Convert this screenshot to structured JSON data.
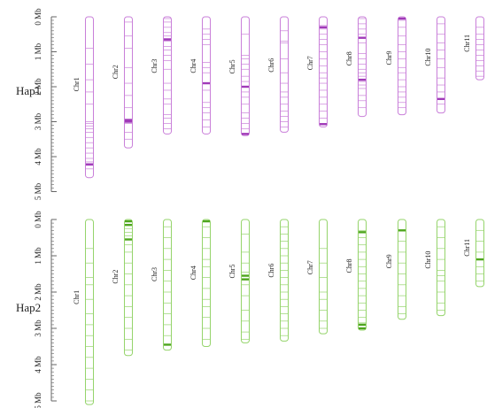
{
  "figure": {
    "axis_labels": [
      "0 Mb",
      "1 Mb",
      "2 Mb",
      "3 Mb",
      "4 Mb",
      "5 Mb"
    ],
    "panels": [
      {
        "label": "Hap1",
        "color": "#c97fd9",
        "dense_color": "#a03ab8",
        "chromosomes": [
          {
            "name": "Chr1",
            "length": 4.6,
            "marks": [
              0.9,
              1.35,
              1.8,
              2.15,
              2.5,
              3.0,
              3.05,
              3.12,
              3.2,
              3.3,
              3.45,
              3.6,
              3.75,
              3.9,
              4.05,
              4.15,
              4.25,
              4.35
            ],
            "dense": [
              4.22
            ]
          },
          {
            "name": "Chr2",
            "length": 3.75,
            "marks": [
              0.15,
              0.55,
              0.9,
              1.45,
              1.9,
              2.25,
              2.6,
              3.05,
              3.3,
              3.5
            ],
            "dense": [
              2.95,
              3.0
            ]
          },
          {
            "name": "Chr3",
            "length": 3.35,
            "marks": [
              0.05,
              0.15,
              0.3,
              0.45,
              0.55,
              0.62,
              0.7,
              0.85,
              0.95,
              1.1,
              1.25,
              1.5,
              1.9,
              2.1,
              2.35,
              2.5,
              2.8,
              2.9,
              3.05,
              3.2
            ],
            "dense": [
              0.65
            ]
          },
          {
            "name": "Chr4",
            "length": 3.35,
            "marks": [
              0.35,
              0.5,
              0.65,
              0.8,
              1.3,
              1.45,
              1.6,
              1.9,
              2.1,
              2.45,
              2.6,
              2.75,
              2.95,
              3.15
            ],
            "dense": [
              1.9
            ]
          },
          {
            "name": "Chr5",
            "length": 3.4,
            "marks": [
              0.5,
              1.1,
              1.2,
              1.35,
              1.5,
              1.7,
              1.85,
              2.0,
              2.15,
              2.3,
              2.5,
              2.75,
              2.9,
              3.05,
              3.2
            ],
            "dense": [
              2.0,
              3.35
            ]
          },
          {
            "name": "Chr6",
            "length": 3.3,
            "marks": [
              0.4,
              0.7,
              0.75,
              1.2,
              1.6,
              1.9,
              2.15,
              2.3,
              2.5,
              2.7,
              2.85,
              3.0,
              3.15
            ],
            "dense": []
          },
          {
            "name": "Chr7",
            "length": 3.15,
            "marks": [
              0.25,
              0.35,
              0.5,
              0.65,
              0.8,
              1.0,
              1.2,
              1.4,
              1.6,
              1.75,
              1.9,
              2.1,
              2.3,
              2.5,
              2.7,
              2.9,
              3.05
            ],
            "dense": [
              0.3,
              3.07
            ]
          },
          {
            "name": "Chr8",
            "length": 2.85,
            "marks": [
              0.05,
              0.2,
              0.35,
              0.5,
              0.75,
              1.05,
              1.2,
              1.35,
              1.5,
              1.6,
              1.7,
              1.85,
              1.95,
              2.05,
              2.25,
              2.4,
              2.6
            ],
            "dense": [
              0.6,
              1.8
            ]
          },
          {
            "name": "Chr9",
            "length": 2.8,
            "marks": [
              0.05,
              0.1,
              0.3,
              0.55,
              0.8,
              1.0,
              1.2,
              1.45,
              1.6,
              1.8,
              2.0,
              2.15,
              2.3,
              2.45,
              2.6
            ],
            "dense": [
              0.05
            ]
          },
          {
            "name": "Chr10",
            "length": 2.75,
            "marks": [
              0.2,
              0.5,
              0.75,
              0.95,
              1.2,
              1.45,
              1.75,
              1.95,
              2.15,
              2.35,
              2.5
            ],
            "dense": [
              2.35
            ]
          },
          {
            "name": "Chr11",
            "length": 1.8,
            "marks": [
              0.3,
              0.5,
              0.65,
              0.8,
              0.95,
              1.1,
              1.25,
              1.4,
              1.55,
              1.7
            ],
            "dense": []
          }
        ]
      },
      {
        "label": "Hap2",
        "color": "#95d46b",
        "dense_color": "#4ea51e",
        "chromosomes": [
          {
            "name": "Chr1",
            "length": 5.1,
            "marks": [
              0.8,
              1.2,
              1.6,
              1.8,
              2.2,
              2.6,
              2.9,
              3.2,
              3.5,
              3.8,
              4.1,
              4.4,
              4.7,
              5.0
            ],
            "dense": []
          },
          {
            "name": "Chr2",
            "length": 3.75,
            "marks": [
              0.05,
              0.15,
              0.25,
              0.35,
              0.45,
              0.7,
              0.9,
              1.2,
              1.5,
              1.8,
              2.1,
              2.4,
              2.7,
              3.0,
              3.3,
              3.6
            ],
            "dense": [
              0.05,
              0.15,
              0.55
            ]
          },
          {
            "name": "Chr3",
            "length": 3.6,
            "marks": [
              0.2,
              0.5,
              0.8,
              1.1,
              1.4,
              1.7,
              2.0,
              2.3,
              2.6,
              2.9,
              3.2,
              3.45
            ],
            "dense": [
              3.45
            ]
          },
          {
            "name": "Chr4",
            "length": 3.5,
            "marks": [
              0.2,
              0.5,
              0.8,
              1.1,
              1.3,
              1.6,
              1.9,
              2.2,
              2.4,
              2.7,
              3.0,
              3.3
            ],
            "dense": [
              0.05
            ]
          },
          {
            "name": "Chr5",
            "length": 3.4,
            "marks": [
              0.4,
              0.9,
              1.2,
              1.45,
              1.55,
              1.8,
              2.1,
              2.5,
              2.8,
              3.1,
              3.3
            ],
            "dense": [
              1.55,
              1.65
            ]
          },
          {
            "name": "Chr6",
            "length": 3.35,
            "marks": [
              0.2,
              0.4,
              0.6,
              0.8,
              1.0,
              1.2,
              1.4,
              1.6,
              1.8,
              2.0,
              2.2,
              2.4,
              2.6,
              2.8,
              3.0,
              3.2
            ],
            "dense": []
          },
          {
            "name": "Chr7",
            "length": 3.15,
            "marks": [
              0.8,
              1.2,
              1.6,
              2.0,
              2.2,
              2.5,
              2.8,
              3.0
            ],
            "dense": []
          },
          {
            "name": "Chr8",
            "length": 3.05,
            "marks": [
              0.3,
              0.5,
              0.7,
              0.9,
              1.1,
              1.3,
              1.5,
              1.7,
              1.9,
              2.1,
              2.3,
              2.5,
              2.7,
              2.85
            ],
            "dense": [
              0.35,
              2.9,
              3.0
            ]
          },
          {
            "name": "Chr9",
            "length": 2.75,
            "marks": [
              0.3,
              0.6,
              0.9,
              1.2,
              1.5,
              1.8,
              2.1,
              2.4,
              2.6
            ],
            "dense": [
              0.3
            ]
          },
          {
            "name": "Chr10",
            "length": 2.65,
            "marks": [
              0.2,
              0.5,
              0.8,
              1.1,
              1.4,
              1.55,
              1.7,
              2.0,
              2.3,
              2.5
            ],
            "dense": []
          },
          {
            "name": "Chr11",
            "length": 1.85,
            "marks": [
              0.3,
              0.6,
              0.9,
              1.1,
              1.3,
              1.5,
              1.7
            ],
            "dense": [
              1.1
            ]
          }
        ]
      }
    ]
  }
}
